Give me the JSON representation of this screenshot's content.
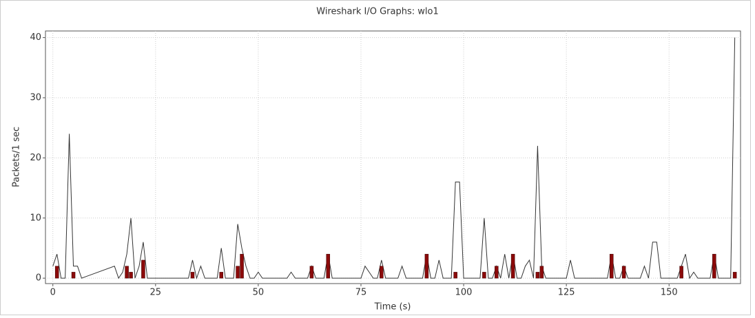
{
  "chart_data": {
    "type": "line",
    "title": "Wireshark I/O Graphs: wlo1",
    "x_label": "Time (s)",
    "y_label": "Packets/1 sec",
    "xlim": [
      -1.8,
      167.4
    ],
    "ylim": [
      -0.9,
      41.1
    ],
    "xticks": [
      0,
      25,
      50,
      75,
      100,
      125,
      150
    ],
    "yticks": [
      0,
      10,
      20,
      30,
      40
    ],
    "grid": true,
    "series": [
      {
        "type": "line",
        "color": "#333333",
        "x": [
          0,
          1,
          2,
          3,
          4,
          5,
          6,
          7,
          15,
          16,
          17,
          18,
          19,
          20,
          21,
          22,
          23,
          33,
          34,
          35,
          36,
          37,
          40,
          41,
          42,
          44,
          45,
          46,
          47,
          48,
          49,
          50,
          51,
          57,
          58,
          59,
          62,
          63,
          64,
          66,
          67,
          68,
          75,
          76,
          77,
          78,
          79,
          80,
          81,
          84,
          85,
          86,
          90,
          91,
          92,
          93,
          94,
          95,
          97,
          98,
          99,
          100,
          104,
          105,
          106,
          107,
          108,
          109,
          110,
          111,
          112,
          113,
          114,
          115,
          116,
          117,
          118,
          119,
          120,
          125,
          126,
          127,
          135,
          136,
          137,
          138,
          139,
          140,
          143,
          144,
          145,
          146,
          147,
          148,
          152,
          153,
          154,
          155,
          156,
          157,
          160,
          161,
          162,
          165,
          166
        ],
        "values": [
          2,
          4,
          0,
          0,
          24,
          2,
          2,
          0,
          2,
          0,
          1,
          4,
          10,
          0,
          2,
          6,
          0,
          0,
          3,
          0,
          2,
          0,
          0,
          5,
          0,
          0,
          9,
          5,
          2,
          0,
          0,
          1,
          0,
          0,
          1,
          0,
          0,
          2,
          0,
          0,
          4,
          0,
          0,
          2,
          1,
          0,
          0,
          3,
          0,
          0,
          2,
          0,
          0,
          4,
          0,
          0,
          3,
          0,
          0,
          16,
          16,
          0,
          0,
          10,
          0,
          0,
          2,
          0,
          4,
          0,
          4,
          0,
          0,
          2,
          3,
          0,
          22,
          2,
          0,
          0,
          3,
          0,
          0,
          4,
          0,
          0,
          2,
          0,
          0,
          2,
          0,
          6,
          6,
          0,
          0,
          2,
          4,
          0,
          1,
          0,
          0,
          4,
          0,
          0,
          40
        ]
      },
      {
        "type": "bar",
        "color": "#8b0a0a",
        "x": [
          1,
          5,
          18,
          19,
          22,
          34,
          41,
          45,
          46,
          63,
          67,
          80,
          91,
          98,
          105,
          108,
          112,
          118,
          119,
          136,
          139,
          153,
          161,
          166
        ],
        "values": [
          2,
          1,
          2,
          1,
          3,
          1,
          1,
          2,
          4,
          2,
          4,
          2,
          4,
          1,
          1,
          2,
          4,
          1,
          2,
          4,
          2,
          2,
          4,
          1
        ]
      }
    ]
  }
}
